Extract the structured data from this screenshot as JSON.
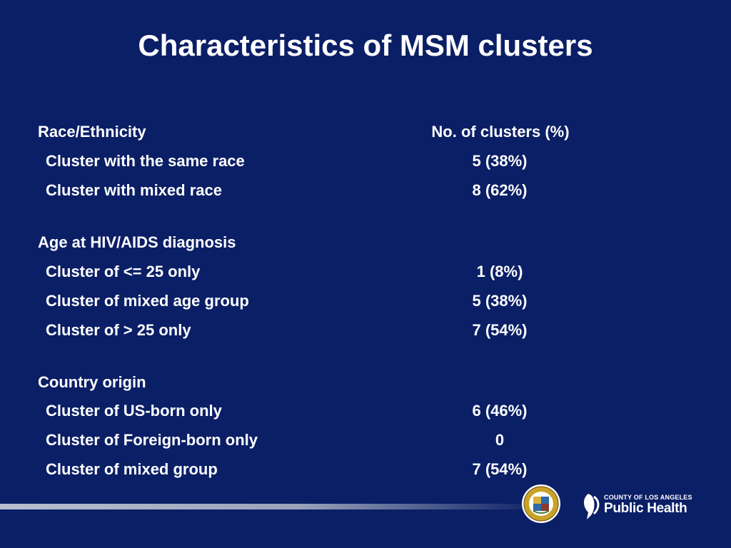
{
  "title": "Characteristics of MSM clusters",
  "table": {
    "column_header": "No. of clusters (%)",
    "sections": [
      {
        "heading": "Race/Ethnicity",
        "rows": [
          {
            "label": "Cluster with the same race",
            "value": "5 (38%)"
          },
          {
            "label": "Cluster with mixed race",
            "value": "8 (62%)"
          }
        ]
      },
      {
        "heading": "Age at HIV/AIDS diagnosis",
        "rows": [
          {
            "label": "Cluster of <= 25 only",
            "value": "1 (8%)"
          },
          {
            "label": "Cluster of mixed age group",
            "value": "5 (38%)"
          },
          {
            "label": "Cluster of > 25 only",
            "value": "7 (54%)"
          }
        ]
      },
      {
        "heading": "Country origin",
        "rows": [
          {
            "label": "Cluster of US-born only",
            "value": "6 (46%)"
          },
          {
            "label": "Cluster of Foreign-born only",
            "value": "0"
          },
          {
            "label": "Cluster of mixed group",
            "value": "7 (54%)"
          }
        ]
      }
    ]
  },
  "footer": {
    "seal_icon": "county-seal-icon",
    "logo_small_text": "COUNTY OF LOS ANGELES",
    "logo_big_text": "Public Health",
    "colors": {
      "background": "#0b1f66",
      "text": "#ffffff",
      "rule": "#b9bfcf"
    }
  }
}
